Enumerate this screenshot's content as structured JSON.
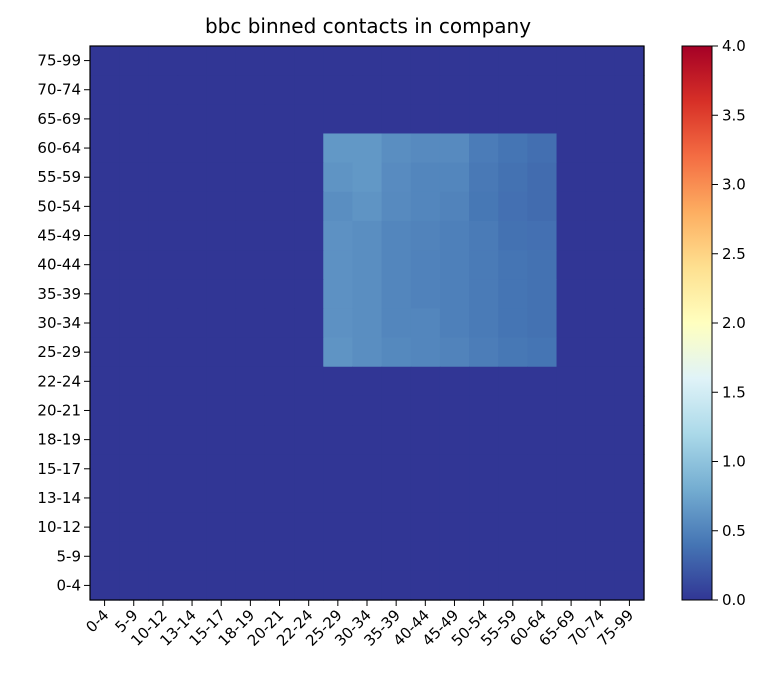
{
  "chart_data": {
    "type": "heatmap",
    "title": "bbc binned contacts in company",
    "xlabel": "",
    "ylabel": "",
    "categories": [
      "0-4",
      "5-9",
      "10-12",
      "13-14",
      "15-17",
      "18-19",
      "20-21",
      "22-24",
      "25-29",
      "30-34",
      "35-39",
      "40-44",
      "45-49",
      "50-54",
      "55-59",
      "60-64",
      "65-69",
      "70-74",
      "75-99"
    ],
    "y_order_top_to_bottom": [
      "75-99",
      "70-74",
      "65-69",
      "60-64",
      "55-59",
      "50-54",
      "45-49",
      "40-44",
      "35-39",
      "30-34",
      "25-29",
      "22-24",
      "20-21",
      "18-19",
      "15-17",
      "13-14",
      "10-12",
      "5-9",
      "0-4"
    ],
    "values_by_row_top_to_bottom": [
      [
        0,
        0,
        0,
        0,
        0,
        0,
        0,
        0,
        0,
        0,
        0,
        0,
        0,
        0,
        0,
        0,
        0,
        0,
        0
      ],
      [
        0,
        0,
        0,
        0,
        0,
        0,
        0,
        0,
        0,
        0,
        0,
        0,
        0,
        0,
        0,
        0,
        0,
        0,
        0
      ],
      [
        0,
        0,
        0,
        0,
        0,
        0,
        0,
        0,
        0,
        0,
        0,
        0,
        0,
        0,
        0,
        0,
        0,
        0,
        0
      ],
      [
        0,
        0,
        0,
        0,
        0,
        0,
        0,
        0,
        0.65,
        0.65,
        0.58,
        0.55,
        0.55,
        0.45,
        0.4,
        0.36,
        0,
        0,
        0
      ],
      [
        0,
        0,
        0,
        0,
        0,
        0,
        0,
        0,
        0.62,
        0.65,
        0.56,
        0.52,
        0.52,
        0.43,
        0.38,
        0.34,
        0,
        0,
        0
      ],
      [
        0,
        0,
        0,
        0,
        0,
        0,
        0,
        0,
        0.58,
        0.62,
        0.55,
        0.52,
        0.5,
        0.42,
        0.37,
        0.34,
        0,
        0,
        0
      ],
      [
        0,
        0,
        0,
        0,
        0,
        0,
        0,
        0,
        0.6,
        0.58,
        0.52,
        0.5,
        0.48,
        0.44,
        0.38,
        0.37,
        0,
        0,
        0
      ],
      [
        0,
        0,
        0,
        0,
        0,
        0,
        0,
        0,
        0.6,
        0.58,
        0.52,
        0.49,
        0.48,
        0.44,
        0.4,
        0.38,
        0,
        0,
        0
      ],
      [
        0,
        0,
        0,
        0,
        0,
        0,
        0,
        0,
        0.6,
        0.58,
        0.52,
        0.49,
        0.48,
        0.44,
        0.4,
        0.38,
        0,
        0,
        0
      ],
      [
        0,
        0,
        0,
        0,
        0,
        0,
        0,
        0,
        0.6,
        0.58,
        0.52,
        0.52,
        0.48,
        0.44,
        0.4,
        0.38,
        0,
        0,
        0
      ],
      [
        0,
        0,
        0,
        0,
        0,
        0,
        0,
        0,
        0.62,
        0.58,
        0.54,
        0.52,
        0.5,
        0.46,
        0.42,
        0.4,
        0,
        0,
        0
      ],
      [
        0,
        0,
        0,
        0,
        0,
        0,
        0,
        0,
        0,
        0,
        0,
        0,
        0,
        0,
        0,
        0,
        0,
        0,
        0
      ],
      [
        0,
        0,
        0,
        0,
        0,
        0,
        0,
        0,
        0,
        0,
        0,
        0,
        0,
        0,
        0,
        0,
        0,
        0,
        0
      ],
      [
        0,
        0,
        0,
        0,
        0,
        0,
        0,
        0,
        0,
        0,
        0,
        0,
        0,
        0,
        0,
        0,
        0,
        0,
        0
      ],
      [
        0,
        0,
        0,
        0,
        0,
        0,
        0,
        0,
        0,
        0,
        0,
        0,
        0,
        0,
        0,
        0,
        0,
        0,
        0
      ],
      [
        0,
        0,
        0,
        0,
        0,
        0,
        0,
        0,
        0,
        0,
        0,
        0,
        0,
        0,
        0,
        0,
        0,
        0,
        0
      ],
      [
        0,
        0,
        0,
        0,
        0,
        0,
        0,
        0,
        0,
        0,
        0,
        0,
        0,
        0,
        0,
        0,
        0,
        0,
        0
      ],
      [
        0,
        0,
        0,
        0,
        0,
        0,
        0,
        0,
        0,
        0,
        0,
        0,
        0,
        0,
        0,
        0,
        0,
        0,
        0
      ],
      [
        0,
        0,
        0,
        0,
        0,
        0,
        0,
        0,
        0,
        0,
        0,
        0,
        0,
        0,
        0,
        0,
        0,
        0,
        0
      ]
    ],
    "colorbar": {
      "min": 0.0,
      "max": 4.0,
      "ticks": [
        "0.0",
        "0.5",
        "1.0",
        "1.5",
        "2.0",
        "2.5",
        "3.0",
        "3.5",
        "4.0"
      ],
      "colormap": "RdYlBu_r",
      "color_stops": [
        "#313695",
        "#4575b4",
        "#74add1",
        "#abd9e9",
        "#e0f3f8",
        "#ffffbf",
        "#fee090",
        "#fdae61",
        "#f46d43",
        "#d73027",
        "#a50026"
      ]
    },
    "grid": false
  }
}
